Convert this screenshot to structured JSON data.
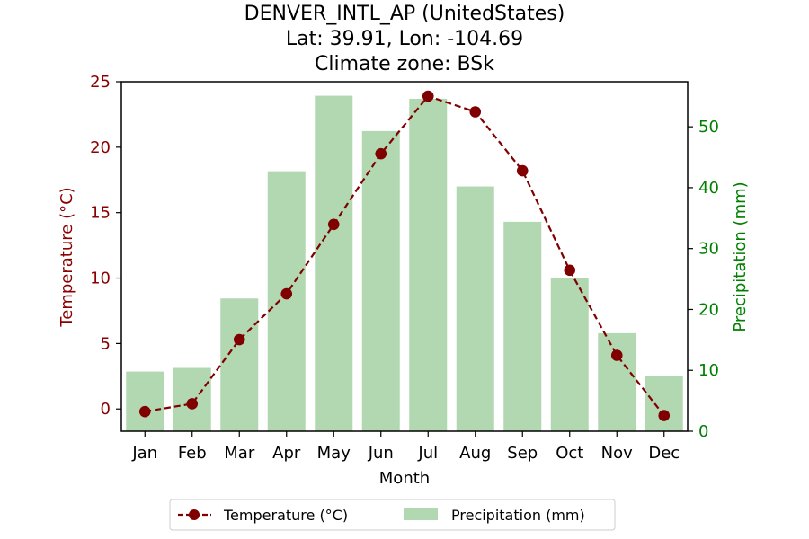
{
  "chart_data": {
    "type": "bar+line",
    "title_lines": [
      "DENVER_INTL_AP (UnitedStates)",
      "Lat: 39.91, Lon: -104.69",
      "Climate zone: BSk"
    ],
    "xlabel": "Month",
    "ylabel_left": "Temperature (°C)",
    "ylabel_right": "Precipitation (mm)",
    "categories": [
      "Jan",
      "Feb",
      "Mar",
      "Apr",
      "May",
      "Jun",
      "Jul",
      "Aug",
      "Sep",
      "Oct",
      "Nov",
      "Dec"
    ],
    "series": [
      {
        "name": "Temperature (°C)",
        "axis": "left",
        "style": "dashed-line-with-markers",
        "color": "#800000",
        "values": [
          -0.2,
          0.4,
          5.3,
          8.8,
          14.1,
          19.5,
          23.9,
          22.7,
          18.2,
          10.6,
          4.1,
          -0.5
        ]
      },
      {
        "name": "Precipitation (mm)",
        "axis": "right",
        "style": "bar",
        "color": "#b2d8b2",
        "values": [
          9.8,
          10.4,
          21.8,
          42.7,
          55.1,
          49.3,
          54.6,
          40.2,
          34.4,
          25.2,
          16.1,
          9.1
        ]
      }
    ],
    "ylim_left": [
      -1.7,
      25
    ],
    "ylim_right": [
      0,
      57.4
    ],
    "yticks_left": [
      "0",
      "5",
      "10",
      "15",
      "20",
      "25"
    ],
    "yticks_right": [
      "0",
      "10",
      "20",
      "30",
      "40",
      "50"
    ],
    "legend_placement": "bottom-center",
    "grid": false
  }
}
